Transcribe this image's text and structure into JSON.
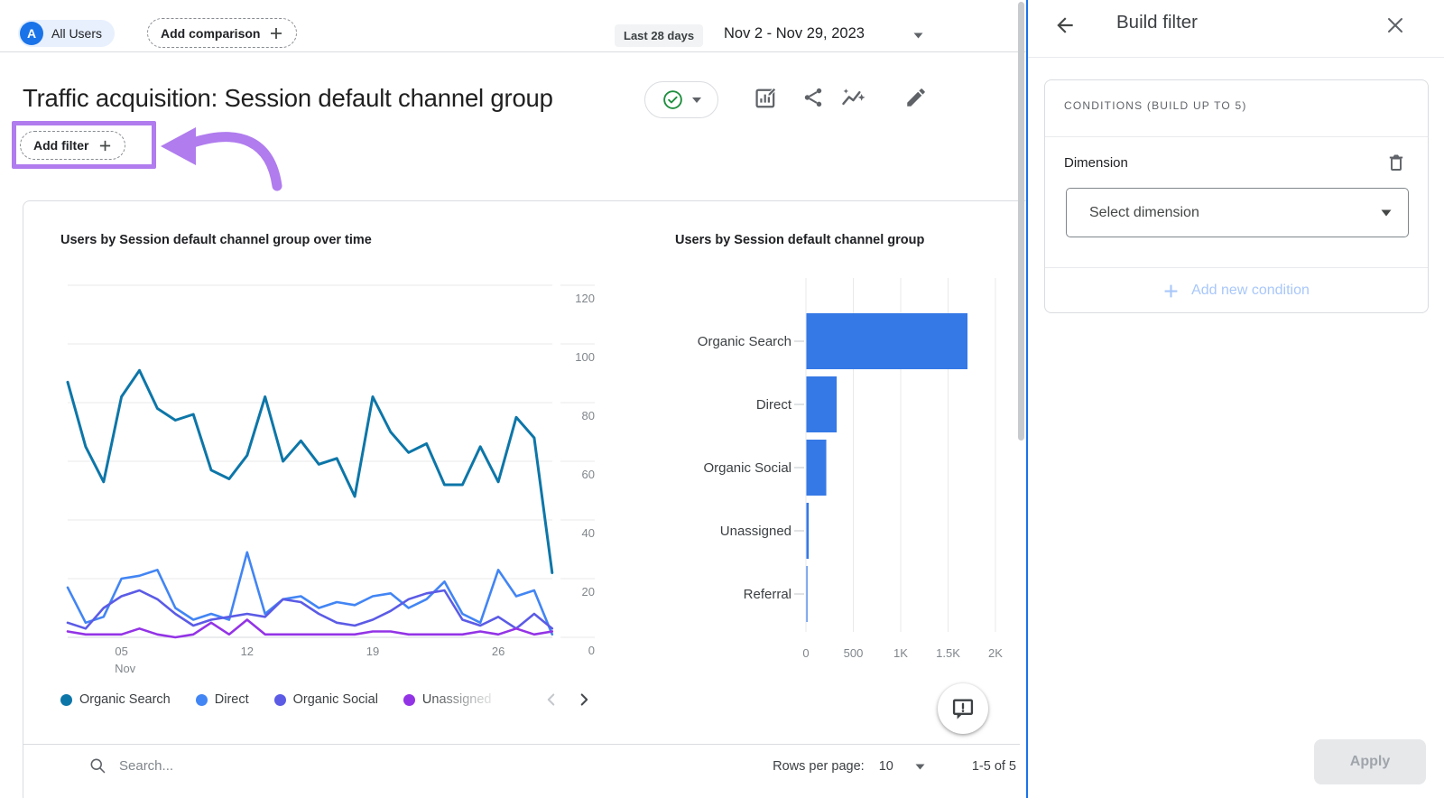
{
  "top_bar": {
    "all_users": {
      "avatar_letter": "A",
      "label": "All Users"
    },
    "add_comparison_label": "Add comparison",
    "date_range_chip": "Last 28 days",
    "date_range": "Nov 2 - Nov 29, 2023"
  },
  "header": {
    "title": "Traffic acquisition: Session default channel group",
    "add_filter_label": "Add filter"
  },
  "chart_data": [
    {
      "type": "line",
      "title": "Users by Session default channel group over time",
      "x_unit": "day of November 2023",
      "x": [
        2,
        3,
        4,
        5,
        6,
        7,
        8,
        9,
        10,
        11,
        12,
        13,
        14,
        15,
        16,
        17,
        18,
        19,
        20,
        21,
        22,
        23,
        24,
        25,
        26,
        27,
        28,
        29
      ],
      "x_ticks": [
        {
          "pos": 3,
          "label": "05",
          "sublabel": "Nov"
        },
        {
          "pos": 10,
          "label": "12"
        },
        {
          "pos": 17,
          "label": "19"
        },
        {
          "pos": 24,
          "label": "26"
        }
      ],
      "ylim": [
        0,
        120
      ],
      "yticks": [
        0,
        20,
        40,
        60,
        80,
        100,
        120
      ],
      "grid": "horizontal",
      "series": [
        {
          "name": "Organic Search",
          "color": "#0d76a8",
          "values": [
            87,
            65,
            53,
            82,
            91,
            78,
            74,
            76,
            57,
            54,
            62,
            82,
            60,
            67,
            59,
            61,
            48,
            82,
            70,
            63,
            66,
            52,
            52,
            65,
            53,
            75,
            68,
            22
          ]
        },
        {
          "name": "Direct",
          "color": "#4285f4",
          "values": [
            17,
            5,
            7,
            20,
            21,
            23,
            10,
            6,
            8,
            6,
            29,
            8,
            13,
            14,
            10,
            12,
            11,
            14,
            15,
            10,
            13,
            19,
            8,
            5,
            23,
            14,
            16,
            1
          ]
        },
        {
          "name": "Organic Social",
          "color": "#5b5be6",
          "values": [
            5,
            3,
            10,
            14,
            16,
            13,
            8,
            4,
            6,
            7,
            8,
            7,
            13,
            12,
            8,
            5,
            4,
            6,
            9,
            13,
            15,
            16,
            6,
            4,
            7,
            3,
            8,
            3
          ]
        },
        {
          "name": "Unassigned",
          "color": "#9333e6",
          "values": [
            2,
            1,
            1,
            1,
            3,
            1,
            0,
            1,
            5,
            1,
            6,
            1,
            1,
            1,
            1,
            1,
            1,
            2,
            2,
            1,
            1,
            1,
            1,
            2,
            1,
            3,
            1,
            2
          ]
        }
      ]
    },
    {
      "type": "bar",
      "orientation": "horizontal",
      "title": "Users by Session default channel group",
      "categories": [
        "Organic Search",
        "Direct",
        "Organic Social",
        "Unassigned",
        "Referral"
      ],
      "values": [
        1700,
        320,
        210,
        25,
        8
      ],
      "bar_color": "#3579e6",
      "xlim": [
        0,
        2000
      ],
      "xticks": [
        {
          "v": 0,
          "label": "0"
        },
        {
          "v": 500,
          "label": "500"
        },
        {
          "v": 1000,
          "label": "1K"
        },
        {
          "v": 1500,
          "label": "1.5K"
        },
        {
          "v": 2000,
          "label": "2K"
        }
      ]
    }
  ],
  "footer": {
    "search_placeholder": "Search...",
    "rows_per_page_label": "Rows per page:",
    "rows_per_page_value": "10",
    "range_label": "1-5 of 5"
  },
  "panel": {
    "title": "Build filter",
    "conditions_header": "CONDITIONS (BUILD UP TO 5)",
    "dimension_label": "Dimension",
    "select_placeholder": "Select dimension",
    "add_condition_label": "Add new condition",
    "apply_label": "Apply"
  },
  "colors": {
    "accent_blue": "#1a73e8",
    "annotation_purple": "#b07cee",
    "check_green": "#1e8e3e",
    "icon_gray": "#5f6368"
  }
}
